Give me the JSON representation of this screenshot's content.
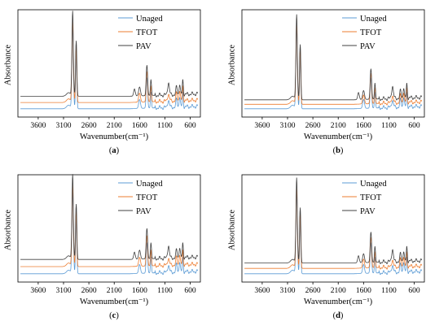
{
  "chart_data": [
    {
      "panel": "a",
      "type": "line",
      "xlabel": "Wavenumber(cm⁻¹)",
      "ylabel": "Absorbance",
      "caption_open": "(",
      "caption_letter": "a",
      "caption_close": ")",
      "x_ticks": [
        3600,
        3100,
        2600,
        2100,
        1600,
        1100,
        600
      ],
      "xlim": [
        4000,
        400
      ],
      "x_reversed": true,
      "grid": false,
      "legend_position": "top-right",
      "series": [
        {
          "name": "Unaged",
          "color": "#5b9bd5",
          "offset": 0.0
        },
        {
          "name": "TFOT",
          "color": "#ed7d31",
          "offset": 0.07
        },
        {
          "name": "PAV",
          "color": "#404040",
          "offset": 0.14
        }
      ]
    },
    {
      "panel": "b",
      "type": "line",
      "xlabel": "Wavenumber(cm⁻¹)",
      "ylabel": "Absorbance",
      "caption_open": "(",
      "caption_letter": "b",
      "caption_close": ")",
      "x_ticks": [
        3600,
        3100,
        2600,
        2100,
        1600,
        1100,
        600
      ],
      "xlim": [
        4000,
        400
      ],
      "x_reversed": true,
      "grid": false,
      "legend_position": "top-right",
      "series": [
        {
          "name": "Unaged",
          "color": "#5b9bd5",
          "offset": 0.0
        },
        {
          "name": "TFOT",
          "color": "#ed7d31",
          "offset": 0.05
        },
        {
          "name": "PAV",
          "color": "#404040",
          "offset": 0.1
        }
      ]
    },
    {
      "panel": "c",
      "type": "line",
      "xlabel": "Wavenumber(cm⁻¹)",
      "ylabel": "Absorbance",
      "caption_open": "(",
      "caption_letter": "c",
      "caption_close": ")",
      "x_ticks": [
        3600,
        3100,
        2600,
        2100,
        1600,
        1100,
        600
      ],
      "xlim": [
        4000,
        400
      ],
      "x_reversed": true,
      "grid": false,
      "legend_position": "top-right",
      "series": [
        {
          "name": "Unaged",
          "color": "#5b9bd5",
          "offset": 0.0
        },
        {
          "name": "TFOT",
          "color": "#ed7d31",
          "offset": 0.08
        },
        {
          "name": "PAV",
          "color": "#404040",
          "offset": 0.16
        }
      ]
    },
    {
      "panel": "d",
      "type": "line",
      "xlabel": "Wavenumber(cm⁻¹)",
      "ylabel": "Absorbance",
      "caption_open": "(",
      "caption_letter": "d",
      "caption_close": ")",
      "x_ticks": [
        3600,
        3100,
        2600,
        2100,
        1600,
        1100,
        600
      ],
      "xlim": [
        4000,
        400
      ],
      "x_reversed": true,
      "grid": false,
      "legend_position": "top-right",
      "series": [
        {
          "name": "Unaged",
          "color": "#5b9bd5",
          "offset": 0.0
        },
        {
          "name": "TFOT",
          "color": "#ed7d31",
          "offset": 0.06
        },
        {
          "name": "PAV",
          "color": "#404040",
          "offset": 0.12
        }
      ]
    }
  ]
}
